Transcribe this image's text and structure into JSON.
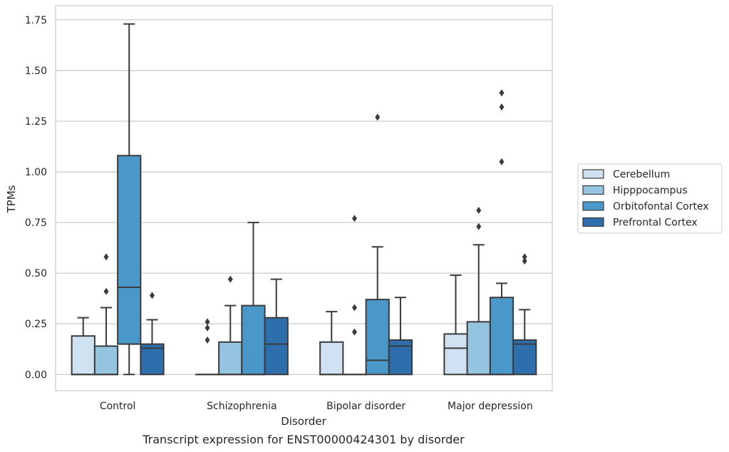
{
  "chart_data": {
    "type": "box",
    "title": "",
    "caption": "Transcript expression for ENST00000424301 by disorder",
    "xlabel": "Disorder",
    "ylabel": "TPMs",
    "ylim": [
      -0.08,
      1.82
    ],
    "yticks": [
      0.0,
      0.25,
      0.5,
      0.75,
      1.0,
      1.25,
      1.5,
      1.75
    ],
    "ytick_labels": [
      "0.00",
      "0.25",
      "0.50",
      "0.75",
      "1.00",
      "1.25",
      "1.50",
      "1.75"
    ],
    "grid": true,
    "legend_position": "right",
    "categories": [
      "Control",
      "Schizophrenia",
      "Bipolar disorder",
      "Major depression"
    ],
    "series": [
      {
        "name": "Cerebellum",
        "color": "#d0e1f2",
        "boxes": [
          {
            "low": 0.0,
            "q1": 0.0,
            "median": 0.0,
            "q3": 0.19,
            "high": 0.28,
            "outliers": []
          },
          {
            "low": 0.0,
            "q1": 0.0,
            "median": 0.0,
            "q3": 0.0,
            "high": 0.0,
            "outliers": [
              0.17,
              0.23,
              0.26
            ]
          },
          {
            "low": 0.0,
            "q1": 0.0,
            "median": 0.0,
            "q3": 0.16,
            "high": 0.31,
            "outliers": []
          },
          {
            "low": 0.0,
            "q1": 0.0,
            "median": 0.13,
            "q3": 0.2,
            "high": 0.49,
            "outliers": []
          }
        ]
      },
      {
        "name": "Hipppocampus",
        "color": "#94c4df",
        "boxes": [
          {
            "low": 0.0,
            "q1": 0.0,
            "median": 0.0,
            "q3": 0.14,
            "high": 0.33,
            "outliers": [
              0.41,
              0.58
            ]
          },
          {
            "low": 0.0,
            "q1": 0.0,
            "median": 0.0,
            "q3": 0.16,
            "high": 0.34,
            "outliers": [
              0.47
            ]
          },
          {
            "low": 0.0,
            "q1": 0.0,
            "median": 0.0,
            "q3": 0.0,
            "high": 0.0,
            "outliers": [
              0.21,
              0.33,
              0.77
            ]
          },
          {
            "low": 0.0,
            "q1": 0.0,
            "median": 0.0,
            "q3": 0.26,
            "high": 0.64,
            "outliers": [
              0.73,
              0.81
            ]
          }
        ]
      },
      {
        "name": "Orbitofontal Cortex",
        "color": "#4a98c9",
        "boxes": [
          {
            "low": 0.0,
            "q1": 0.15,
            "median": 0.43,
            "q3": 1.08,
            "high": 1.73,
            "outliers": []
          },
          {
            "low": 0.0,
            "q1": 0.0,
            "median": 0.0,
            "q3": 0.34,
            "high": 0.75,
            "outliers": []
          },
          {
            "low": 0.0,
            "q1": 0.0,
            "median": 0.07,
            "q3": 0.37,
            "high": 0.63,
            "outliers": [
              1.27
            ]
          },
          {
            "low": 0.0,
            "q1": 0.0,
            "median": 0.0,
            "q3": 0.38,
            "high": 0.45,
            "outliers": [
              1.05,
              1.32,
              1.39
            ]
          }
        ]
      },
      {
        "name": "Prefrontal Cortex",
        "color": "#2e6ead",
        "boxes": [
          {
            "low": 0.0,
            "q1": 0.0,
            "median": 0.13,
            "q3": 0.15,
            "high": 0.27,
            "outliers": [
              0.39
            ]
          },
          {
            "low": 0.0,
            "q1": 0.0,
            "median": 0.15,
            "q3": 0.28,
            "high": 0.47,
            "outliers": []
          },
          {
            "low": 0.0,
            "q1": 0.0,
            "median": 0.14,
            "q3": 0.17,
            "high": 0.38,
            "outliers": []
          },
          {
            "low": 0.0,
            "q1": 0.0,
            "median": 0.15,
            "q3": 0.17,
            "high": 0.32,
            "outliers": [
              0.56,
              0.58
            ]
          }
        ]
      }
    ]
  }
}
